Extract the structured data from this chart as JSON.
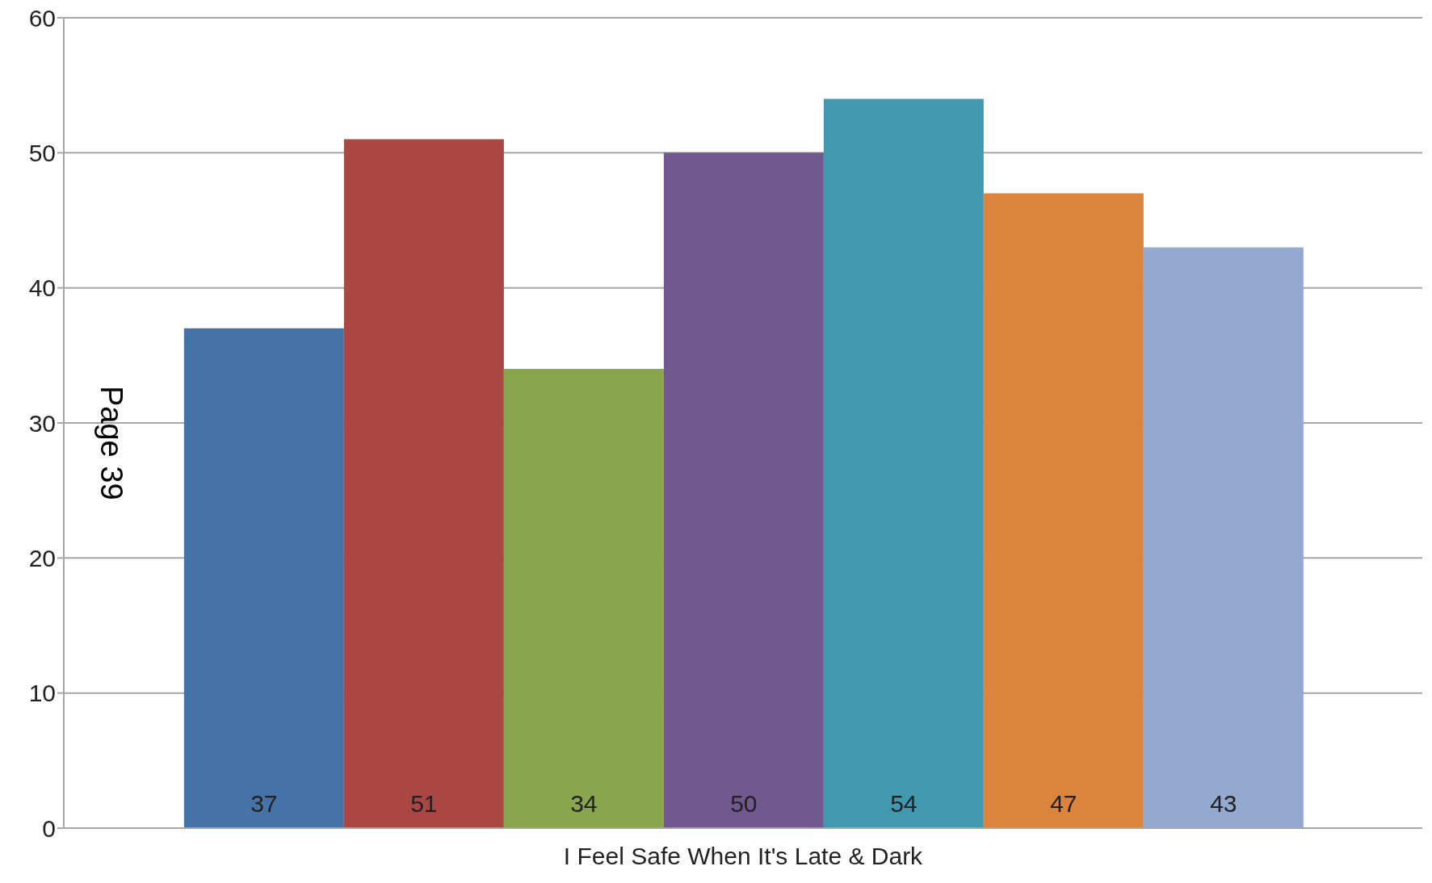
{
  "chart_data": {
    "type": "bar",
    "categories": [
      "I Feel Safe When It's Late & Dark"
    ],
    "series": [
      {
        "color": "#4572a7",
        "values": [
          37
        ]
      },
      {
        "color": "#aa4643",
        "values": [
          51
        ]
      },
      {
        "color": "#89a54e",
        "values": [
          34
        ]
      },
      {
        "color": "#71588f",
        "values": [
          50
        ]
      },
      {
        "color": "#4198af",
        "values": [
          54
        ]
      },
      {
        "color": "#db843d",
        "values": [
          47
        ]
      },
      {
        "color": "#93a9cf",
        "values": [
          43
        ]
      }
    ],
    "ylim": [
      0,
      60
    ],
    "yticks": [
      0,
      10,
      20,
      30,
      40,
      50,
      60
    ],
    "grid": "y",
    "data_labels": true,
    "legend": false,
    "annotations": [
      "Page 39"
    ]
  }
}
